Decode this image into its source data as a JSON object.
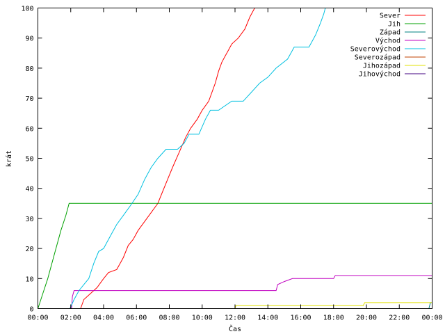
{
  "chart_data": {
    "type": "line",
    "xlabel": "Čas",
    "ylabel": "krát",
    "xlim": [
      0,
      24
    ],
    "ylim": [
      0,
      100
    ],
    "grid": false,
    "legend_position": "top-right",
    "x_ticks": [
      0,
      2,
      4,
      6,
      8,
      10,
      12,
      14,
      16,
      18,
      20,
      22,
      24
    ],
    "x_tick_labels": [
      "00:00",
      "02:00",
      "04:00",
      "06:00",
      "08:00",
      "10:00",
      "12:00",
      "14:00",
      "16:00",
      "18:00",
      "20:00",
      "22:00",
      "00:00"
    ],
    "y_ticks": [
      0,
      10,
      20,
      30,
      40,
      50,
      60,
      70,
      80,
      90,
      100
    ],
    "y_tick_labels": [
      "0",
      "10",
      "20",
      "30",
      "40",
      "50",
      "60",
      "70",
      "80",
      "90",
      "100"
    ],
    "series": [
      {
        "name": "Sever",
        "color": "#ff0000",
        "points": [
          [
            2.6,
            0
          ],
          [
            2.8,
            3
          ],
          [
            3.2,
            5
          ],
          [
            3.6,
            7
          ],
          [
            4.0,
            10
          ],
          [
            4.3,
            12
          ],
          [
            4.8,
            13
          ],
          [
            5.2,
            17
          ],
          [
            5.5,
            21
          ],
          [
            5.8,
            23
          ],
          [
            6.1,
            26
          ],
          [
            6.5,
            29
          ],
          [
            6.9,
            32
          ],
          [
            7.3,
            35
          ],
          [
            7.6,
            39
          ],
          [
            7.9,
            43
          ],
          [
            8.2,
            47
          ],
          [
            8.6,
            52
          ],
          [
            9.0,
            57
          ],
          [
            9.3,
            60
          ],
          [
            9.7,
            63
          ],
          [
            10.0,
            66
          ],
          [
            10.4,
            69
          ],
          [
            10.8,
            75
          ],
          [
            11.0,
            79
          ],
          [
            11.2,
            82
          ],
          [
            11.4,
            84
          ],
          [
            11.6,
            86
          ],
          [
            11.8,
            88
          ],
          [
            12.2,
            90
          ],
          [
            12.6,
            93
          ],
          [
            12.9,
            97
          ],
          [
            13.2,
            100
          ]
        ]
      },
      {
        "name": "Jih",
        "color": "#00a000",
        "points": [
          [
            0.0,
            0
          ],
          [
            0.3,
            5
          ],
          [
            0.6,
            10
          ],
          [
            1.0,
            18
          ],
          [
            1.4,
            26
          ],
          [
            1.7,
            31
          ],
          [
            1.9,
            35
          ],
          [
            2.0,
            35
          ],
          [
            24.0,
            35
          ]
        ]
      },
      {
        "name": "Západ",
        "color": "#008080",
        "points": [
          [
            23.8,
            0
          ],
          [
            23.9,
            2
          ],
          [
            24.0,
            2
          ]
        ]
      },
      {
        "name": "Východ",
        "color": "#c000c0",
        "points": [
          [
            2.05,
            0
          ],
          [
            2.1,
            4
          ],
          [
            2.2,
            6
          ],
          [
            8.0,
            6
          ],
          [
            14.5,
            6
          ],
          [
            14.6,
            8
          ],
          [
            15.0,
            9
          ],
          [
            15.5,
            10
          ],
          [
            18.0,
            10
          ],
          [
            18.1,
            11
          ],
          [
            24.0,
            11
          ]
        ]
      },
      {
        "name": "Severovýchod",
        "color": "#00c0e0",
        "points": [
          [
            1.95,
            0
          ],
          [
            2.2,
            3
          ],
          [
            2.5,
            6
          ],
          [
            2.8,
            8
          ],
          [
            3.1,
            10
          ],
          [
            3.4,
            15
          ],
          [
            3.7,
            19
          ],
          [
            4.0,
            20
          ],
          [
            4.4,
            24
          ],
          [
            4.8,
            28
          ],
          [
            5.2,
            31
          ],
          [
            5.6,
            34
          ],
          [
            6.1,
            38
          ],
          [
            6.5,
            43
          ],
          [
            6.9,
            47
          ],
          [
            7.3,
            50
          ],
          [
            7.8,
            53
          ],
          [
            8.5,
            53
          ],
          [
            8.9,
            55
          ],
          [
            9.2,
            58
          ],
          [
            9.8,
            58
          ],
          [
            10.2,
            63
          ],
          [
            10.5,
            66
          ],
          [
            11.0,
            66
          ],
          [
            11.8,
            69
          ],
          [
            12.5,
            69
          ],
          [
            13.0,
            72
          ],
          [
            13.5,
            75
          ],
          [
            14.0,
            77
          ],
          [
            14.5,
            80
          ],
          [
            15.2,
            83
          ],
          [
            15.6,
            87
          ],
          [
            16.5,
            87
          ],
          [
            16.9,
            91
          ],
          [
            17.2,
            95
          ],
          [
            17.4,
            98
          ],
          [
            17.5,
            100
          ]
        ]
      },
      {
        "name": "Severozápad",
        "color": "#c04000",
        "points": []
      },
      {
        "name": "Jihozápad",
        "color": "#e0e000",
        "points": [
          [
            12.0,
            0
          ],
          [
            12.05,
            1
          ],
          [
            19.8,
            1
          ],
          [
            19.9,
            2
          ],
          [
            24.0,
            2
          ]
        ]
      },
      {
        "name": "Jihovýchod",
        "color": "#400080",
        "points": []
      }
    ]
  }
}
